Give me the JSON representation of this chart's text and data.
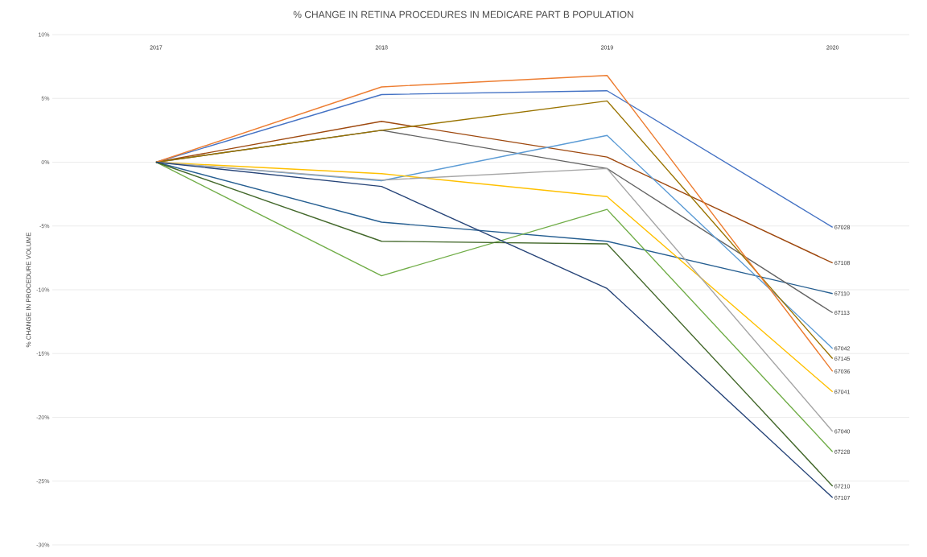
{
  "chart_data": {
    "type": "line",
    "title": "% CHANGE IN RETINA PROCEDURES IN MEDICARE PART B POPULATION",
    "ylabel": "% CHANGE IN PROCEDURE VOLUME",
    "categories": [
      "2017",
      "2018",
      "2019",
      "2020"
    ],
    "series": [
      {
        "name": "67028",
        "color": "#4472c4",
        "values": [
          0,
          5.3,
          5.6,
          -5.1
        ]
      },
      {
        "name": "67108",
        "color": "#9e480e",
        "values": [
          0,
          3.2,
          0.4,
          -7.9
        ]
      },
      {
        "name": "67110",
        "color": "#255e91",
        "values": [
          0,
          -4.7,
          -6.2,
          -10.3
        ]
      },
      {
        "name": "67113",
        "color": "#636363",
        "values": [
          0,
          2.5,
          -0.5,
          -11.8
        ]
      },
      {
        "name": "67042",
        "color": "#5b9bd5",
        "values": [
          0,
          -1.45,
          2.1,
          -14.6
        ]
      },
      {
        "name": "67145",
        "color": "#997300",
        "values": [
          0,
          2.5,
          4.8,
          -15.4
        ]
      },
      {
        "name": "67036",
        "color": "#ed7d31",
        "values": [
          0,
          5.9,
          6.8,
          -16.4
        ]
      },
      {
        "name": "67041",
        "color": "#ffc000",
        "values": [
          0,
          -0.9,
          -2.7,
          -18.0
        ]
      },
      {
        "name": "67040",
        "color": "#a5a5a5",
        "values": [
          0,
          -1.4,
          -0.5,
          -21.1
        ]
      },
      {
        "name": "67228",
        "color": "#70ad47",
        "values": [
          0,
          -8.9,
          -3.7,
          -22.7
        ]
      },
      {
        "name": "67210",
        "color": "#43682b",
        "values": [
          0,
          -6.2,
          -6.4,
          -25.4
        ]
      },
      {
        "name": "67107",
        "color": "#264478",
        "values": [
          0,
          -1.9,
          -9.9,
          -26.3
        ]
      }
    ],
    "ylim": [
      -30,
      10
    ],
    "yticks": [
      {
        "value": -30,
        "label": "-30%"
      },
      {
        "value": -25,
        "label": "-25%"
      },
      {
        "value": -20,
        "label": "-20%"
      },
      {
        "value": -15,
        "label": "-15%"
      },
      {
        "value": -10,
        "label": "-10%"
      },
      {
        "value": -5,
        "label": "-5%"
      },
      {
        "value": 0,
        "label": "0%"
      },
      {
        "value": 5,
        "label": "5%"
      },
      {
        "value": 10,
        "label": "10%"
      }
    ],
    "grid": "y",
    "legend": false,
    "marker": "none",
    "line_style": "solid"
  }
}
